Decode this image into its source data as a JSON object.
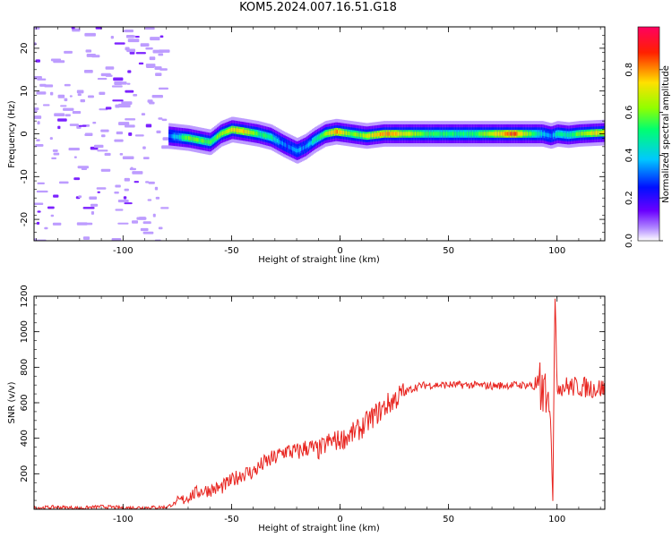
{
  "chart_data": [
    {
      "type": "heatmap",
      "title": "KOM5.2024.007.16.51.G18",
      "xlabel": "Height of straight line (km)",
      "ylabel": "Frequency (Hz)",
      "xlim": [
        -141,
        122
      ],
      "ylim": [
        -25,
        25
      ],
      "xticks": [
        -100,
        -50,
        0,
        50,
        100
      ],
      "xtick_labels": [
        "-100",
        "-50",
        "0",
        "50",
        "100"
      ],
      "yticks": [
        -20,
        -10,
        0,
        10,
        20
      ],
      "ytick_labels": [
        "-20",
        "-10",
        "0",
        "10",
        "20"
      ],
      "colorbar": {
        "label": "Normalized spectral amplitude",
        "range": [
          0,
          1
        ],
        "ticks": [
          0.0,
          0.2,
          0.4,
          0.6,
          0.8
        ],
        "tick_labels": [
          "0.0",
          "0.2",
          "0.4",
          "0.6",
          "0.8"
        ],
        "colormap": [
          "#ffffff",
          "#b088ff",
          "#6a00ff",
          "#0010ff",
          "#00c8ff",
          "#00ff70",
          "#90ff00",
          "#ffe000",
          "#ff2000",
          "#ff0060"
        ]
      },
      "noise_region_x": [
        -141,
        -79
      ],
      "signal_region_x": [
        -79,
        122
      ],
      "signal_track": {
        "x": [
          -79,
          -70,
          -60,
          -55,
          -50,
          -45,
          -38,
          -32,
          -26,
          -20,
          -16,
          -12,
          -7,
          -2,
          5,
          12,
          20,
          30,
          40,
          60,
          80,
          93,
          97,
          100,
          105,
          110,
          122
        ],
        "freq": [
          -0.5,
          -1.0,
          -2.0,
          0.0,
          1.0,
          0.6,
          0.0,
          -0.8,
          -2.5,
          -4.0,
          -3.0,
          -1.5,
          0.0,
          0.5,
          0.0,
          -0.5,
          0.0,
          0.0,
          0.0,
          0.0,
          0.0,
          0.0,
          -0.5,
          0.0,
          -0.3,
          0.0,
          0.3
        ],
        "amplitude": [
          0.3,
          0.6,
          0.55,
          0.6,
          0.7,
          0.75,
          0.55,
          0.5,
          0.3,
          0.35,
          0.35,
          0.45,
          0.6,
          0.8,
          0.6,
          0.65,
          0.8,
          0.7,
          0.55,
          0.5,
          0.85,
          0.4,
          0.3,
          0.5,
          0.45,
          0.6,
          0.75
        ]
      }
    },
    {
      "type": "line",
      "title": "",
      "xlabel": "Height of straight line (km)",
      "ylabel": "SNR (v/v)",
      "xlim": [
        -141,
        122
      ],
      "ylim": [
        0,
        1200
      ],
      "xticks": [
        -100,
        -50,
        0,
        50,
        100
      ],
      "xtick_labels": [
        "-100",
        "-50",
        "0",
        "50",
        "100"
      ],
      "yticks": [
        200,
        400,
        600,
        800,
        1000,
        1200
      ],
      "ytick_labels": [
        "200",
        "400",
        "600",
        "800",
        "1000",
        "1200"
      ],
      "line_color": "#e8241f",
      "series": [
        {
          "x": [
            -141,
            -130,
            -120,
            -110,
            -100,
            -90,
            -80,
            -75,
            -72,
            -70,
            -65,
            -60,
            -55,
            -50,
            -45,
            -40,
            -35,
            -30,
            -25,
            -20,
            -15,
            -10,
            -5,
            0,
            5,
            10,
            15,
            20,
            25,
            30,
            35,
            40,
            45,
            50,
            60,
            70,
            80,
            90,
            95,
            97,
            98,
            99,
            100,
            105,
            110,
            115,
            122
          ],
          "values": [
            8,
            12,
            6,
            15,
            8,
            10,
            12,
            40,
            55,
            70,
            100,
            110,
            120,
            160,
            200,
            210,
            260,
            290,
            330,
            320,
            350,
            330,
            380,
            390,
            420,
            460,
            520,
            570,
            620,
            660,
            690,
            700,
            700,
            700,
            700,
            695,
            700,
            700,
            680,
            650,
            30,
            1200,
            700,
            690,
            690,
            685,
            680
          ]
        }
      ]
    }
  ]
}
